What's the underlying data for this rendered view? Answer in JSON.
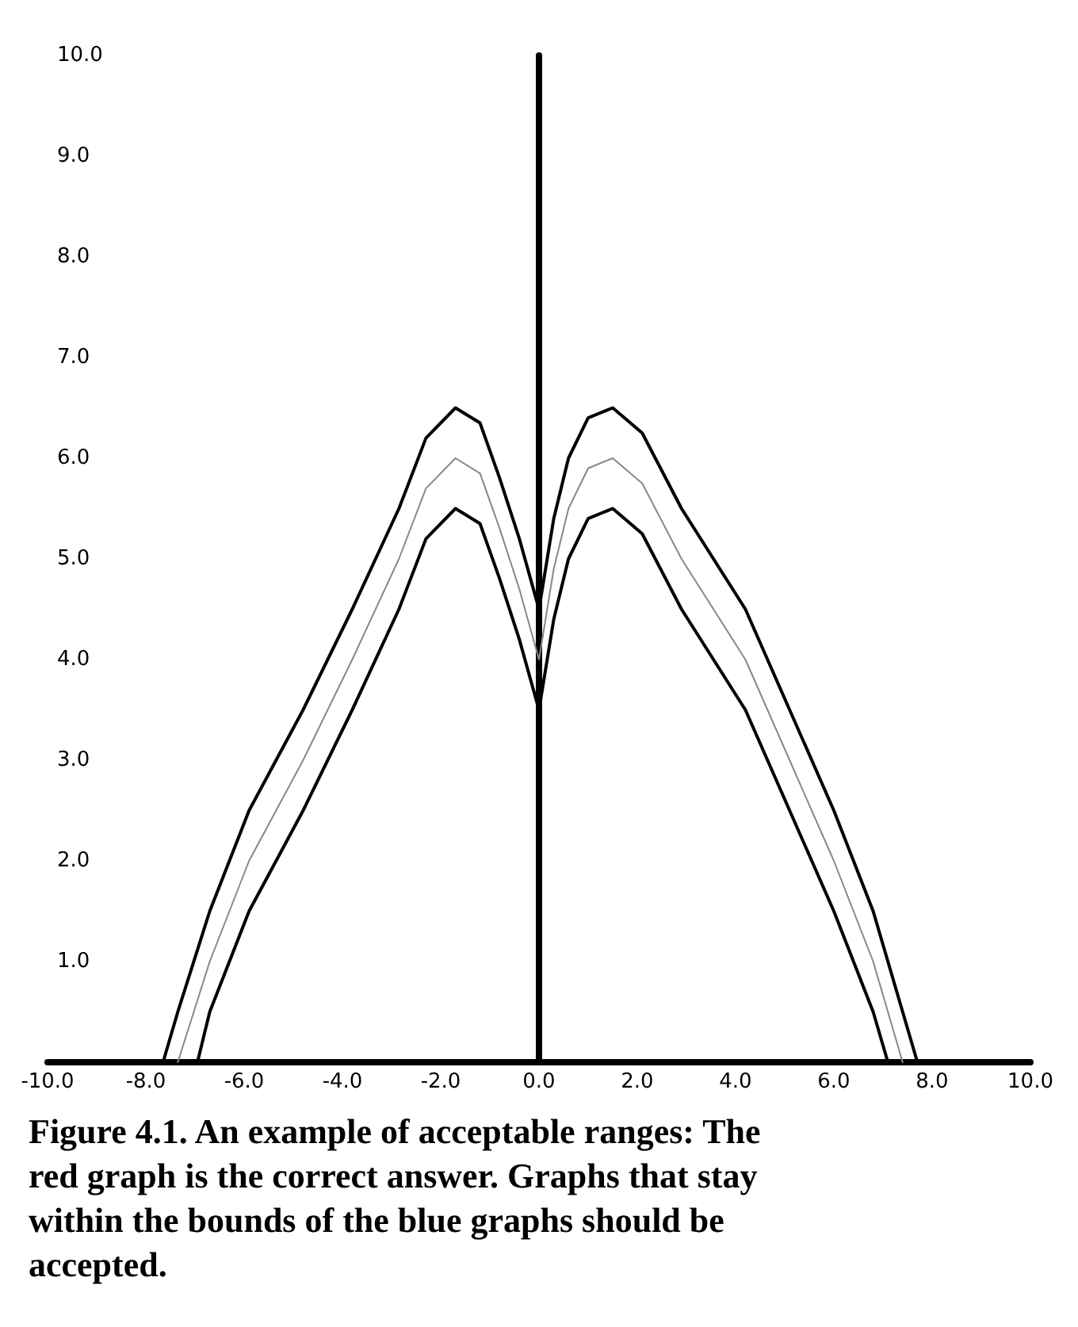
{
  "chart_data": {
    "type": "line",
    "annotations": [
      "Figure 4.1. An example of acceptable ranges:  The red graph is the correct answer.  Graphs that stay within the bounds of the blue graphs should be accepted."
    ],
    "marker": "none",
    "line_style": "solid",
    "xlim": [
      -10,
      10
    ],
    "ylim": [
      0,
      10
    ],
    "xticks": [
      {
        "value": -10,
        "label": "-10.0"
      },
      {
        "value": -8,
        "label": "-8.0"
      },
      {
        "value": -6,
        "label": "-6.0"
      },
      {
        "value": -4,
        "label": "-4.0"
      },
      {
        "value": -2,
        "label": "-2.0"
      },
      {
        "value": 0,
        "label": "0.0"
      },
      {
        "value": 2,
        "label": "2.0"
      },
      {
        "value": 4,
        "label": "4.0"
      },
      {
        "value": 6,
        "label": "6.0"
      },
      {
        "value": 8,
        "label": "8.0"
      },
      {
        "value": 10,
        "label": "10.0"
      }
    ],
    "yticks": [
      {
        "value": 1,
        "label": "1.0"
      },
      {
        "value": 2,
        "label": "2.0"
      },
      {
        "value": 3,
        "label": "3.0"
      },
      {
        "value": 4,
        "label": "4.0"
      },
      {
        "value": 5,
        "label": "5.0"
      },
      {
        "value": 6,
        "label": "6.0"
      },
      {
        "value": 7,
        "label": "7.0"
      },
      {
        "value": 8,
        "label": "8.0"
      },
      {
        "value": 9,
        "label": "9.0"
      },
      {
        "value": 10,
        "label": "10.0"
      }
    ],
    "series": [
      {
        "color": "#000000",
        "x": [
          -7.65,
          -7.35,
          -6.7,
          -5.9,
          -4.8,
          -3.8,
          -2.85,
          -2.3,
          -1.7,
          -1.2,
          -0.8,
          -0.4,
          0,
          0.3,
          0.6,
          1.0,
          1.5,
          2.1,
          2.9,
          4.2,
          5.1,
          6.0,
          6.8,
          7.4,
          7.7
        ],
        "values": [
          0,
          0.5,
          1.5,
          2.5,
          3.5,
          4.5,
          5.5,
          6.2,
          6.5,
          6.35,
          5.8,
          5.2,
          4.5,
          5.4,
          6.0,
          6.4,
          6.5,
          6.25,
          5.5,
          4.5,
          3.5,
          2.5,
          1.5,
          0.5,
          0
        ]
      },
      {
        "color": "#888888",
        "x": [
          -7.35,
          -6.7,
          -5.9,
          -4.8,
          -3.8,
          -2.85,
          -2.3,
          -1.7,
          -1.2,
          -0.8,
          -0.4,
          0,
          0.3,
          0.6,
          1.0,
          1.5,
          2.1,
          2.9,
          4.2,
          5.1,
          6.0,
          6.8,
          7.4
        ],
        "values": [
          0,
          1,
          2,
          3,
          4,
          5,
          5.7,
          6,
          5.85,
          5.3,
          4.7,
          4.0,
          4.9,
          5.5,
          5.9,
          6.0,
          5.75,
          5.0,
          4.0,
          3.0,
          2.0,
          1.0,
          0
        ]
      },
      {
        "color": "#000000",
        "x": [
          -6.95,
          -6.7,
          -5.9,
          -4.8,
          -3.8,
          -2.85,
          -2.3,
          -1.7,
          -1.2,
          -0.8,
          -0.4,
          0,
          0.3,
          0.6,
          1.0,
          1.5,
          2.1,
          2.9,
          4.2,
          5.1,
          6.0,
          6.8,
          7.1
        ],
        "values": [
          0,
          0.5,
          1.5,
          2.5,
          3.5,
          4.5,
          5.2,
          5.5,
          5.35,
          4.8,
          4.2,
          3.5,
          4.4,
          5.0,
          5.4,
          5.5,
          5.25,
          4.5,
          3.5,
          2.5,
          1.5,
          0.5,
          0
        ]
      }
    ]
  }
}
